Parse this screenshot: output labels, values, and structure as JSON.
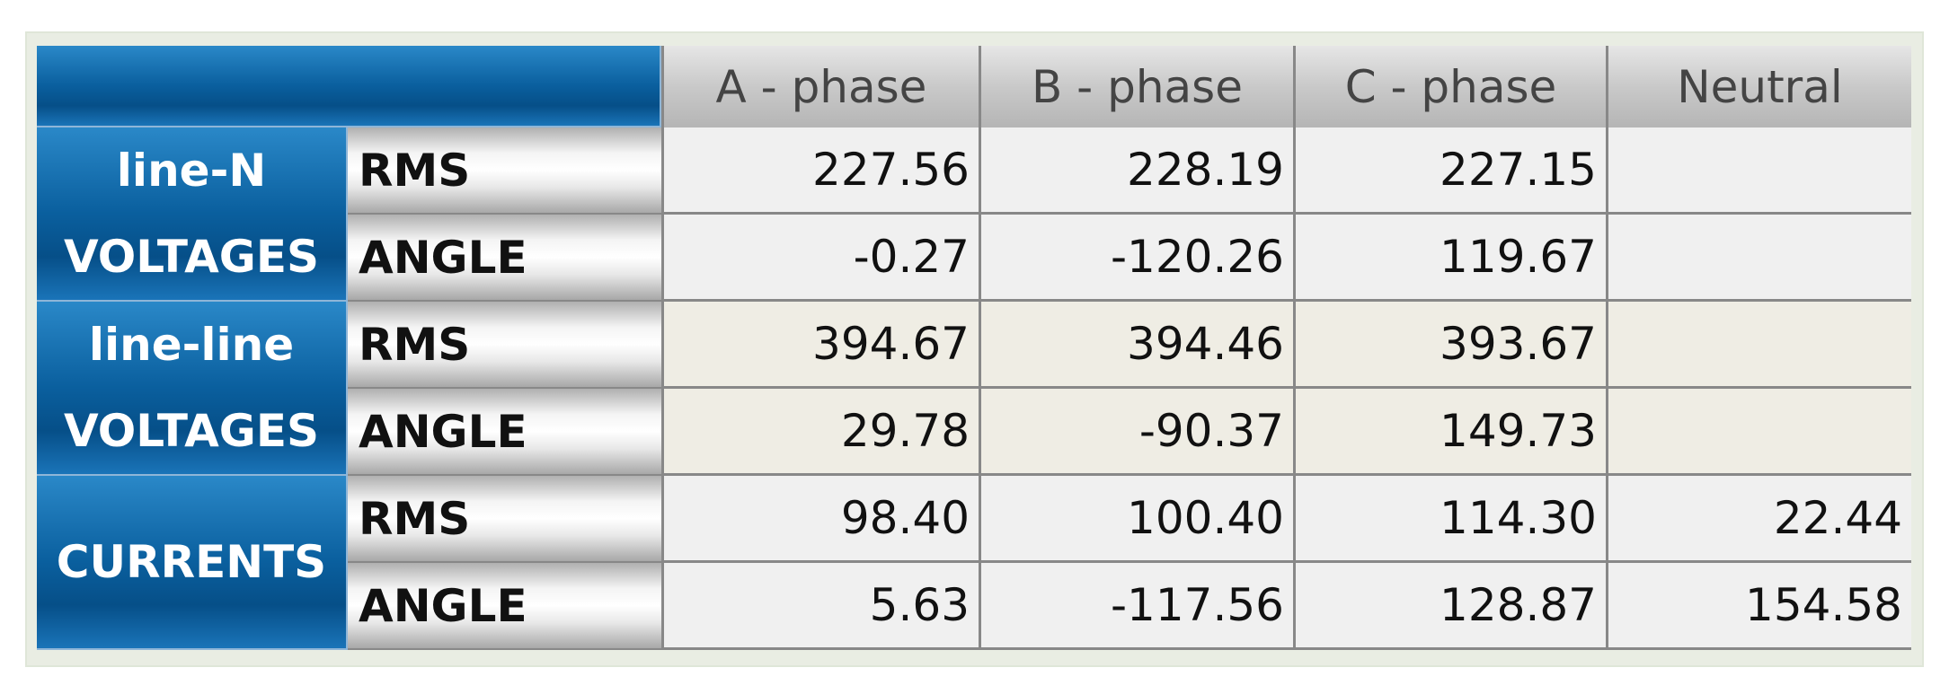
{
  "table": {
    "header": [
      "A - phase",
      "B - phase",
      "C - phase",
      "Neutral"
    ],
    "groups": [
      {
        "label": [
          "line-N",
          "VOLTAGES"
        ],
        "rows": [
          {
            "quantity": "RMS",
            "values": [
              "227.56",
              "228.19",
              "227.15",
              null
            ]
          },
          {
            "quantity": "ANGLE",
            "values": [
              "-0.27",
              "-120.26",
              "119.67",
              null
            ]
          }
        ]
      },
      {
        "label": [
          "line-line",
          "VOLTAGES"
        ],
        "rows": [
          {
            "quantity": "RMS",
            "values": [
              "394.67",
              "394.46",
              "393.67",
              null
            ]
          },
          {
            "quantity": "ANGLE",
            "values": [
              "29.78",
              "-90.37",
              "149.73",
              null
            ]
          }
        ]
      },
      {
        "label": [
          "CURRENTS"
        ],
        "rows": [
          {
            "quantity": "RMS",
            "values": [
              "98.40",
              "100.40",
              "114.30",
              "22.44"
            ]
          },
          {
            "quantity": "ANGLE",
            "values": [
              "5.63",
              "-117.56",
              "128.87",
              "154.58"
            ]
          }
        ]
      }
    ]
  }
}
